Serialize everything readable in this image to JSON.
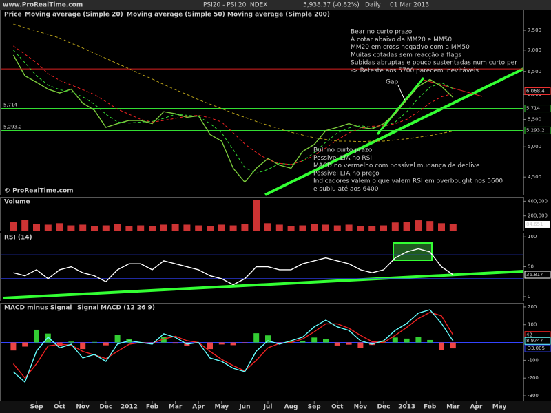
{
  "header": {
    "site": "www.ProRealTime.com",
    "title": "PSI20 - PSI 20 INDEX",
    "quote": "5,938.37 (-0.82%)",
    "period": "Daily",
    "date": "01 Mar 2013"
  },
  "chart_data": [
    {
      "type": "line",
      "log": true,
      "ylim": [
        4230,
        8060
      ],
      "yticks": [
        {
          "value": 7500,
          "label": "7,500"
        },
        {
          "value": 7000,
          "label": "7,000"
        },
        {
          "value": 6500,
          "label": "6,500"
        },
        {
          "value": 6000,
          "label": "6,000"
        },
        {
          "value": 5500,
          "label": "5,500"
        },
        {
          "value": 5000,
          "label": "5,000"
        },
        {
          "value": 4500,
          "label": "4,500"
        }
      ],
      "series": [
        {
          "name": "Price",
          "color": "#7ccd3c",
          "values": [
            6880,
            6400,
            6260,
            6110,
            6030,
            6110,
            5820,
            5680,
            5350,
            5420,
            5480,
            5480,
            5420,
            5650,
            5610,
            5540,
            5570,
            5220,
            5100,
            4640,
            4420,
            4640,
            4800,
            4690,
            4640,
            4920,
            5040,
            5290,
            5350,
            5420,
            5350,
            5320,
            5420,
            5610,
            5890,
            6170,
            6320,
            6170,
            5938,
            null,
            null,
            null,
            null
          ]
        },
        {
          "name": "Moving average (Simple 20)",
          "color": "#33dd33",
          "dashed": true,
          "values": [
            7000,
            6700,
            6400,
            6200,
            6100,
            6050,
            5950,
            5800,
            5600,
            5450,
            5430,
            5450,
            5460,
            5520,
            5600,
            5580,
            5560,
            5420,
            5250,
            4950,
            4650,
            4560,
            4620,
            4720,
            4700,
            4760,
            4900,
            5080,
            5250,
            5340,
            5380,
            5350,
            5360,
            5450,
            5650,
            5920,
            6150,
            6250,
            6120,
            null,
            null,
            null,
            null
          ]
        },
        {
          "name": "Moving average (Simple 50)",
          "color": "#ee2222",
          "dashed": true,
          "values": [
            7100,
            6900,
            6700,
            6450,
            6300,
            6200,
            6100,
            6000,
            5850,
            5700,
            5600,
            5500,
            5450,
            5480,
            5520,
            5560,
            5580,
            5530,
            5450,
            5250,
            5050,
            4900,
            4780,
            4720,
            4700,
            4760,
            4850,
            4980,
            5120,
            5250,
            5330,
            5370,
            5380,
            5420,
            5500,
            5650,
            5820,
            5950,
            6020,
            null,
            null,
            null,
            null
          ]
        },
        {
          "name": "Moving average (Simple 200)",
          "color": "#b8a018",
          "dashed": true,
          "values": [
            7660,
            7570,
            7480,
            7390,
            7300,
            7170,
            7050,
            6920,
            6800,
            6680,
            6560,
            6440,
            6330,
            6210,
            6100,
            6000,
            5890,
            5800,
            5710,
            5620,
            5540,
            5460,
            5390,
            5320,
            5260,
            5210,
            5160,
            5130,
            5100,
            5100,
            5090,
            5100,
            5100,
            5120,
            5140,
            5170,
            5200,
            5240,
            5280,
            null,
            null,
            null,
            null
          ]
        }
      ],
      "hlines": [
        {
          "value": 6557,
          "color": "#dd2222"
        },
        {
          "value": 5714,
          "color": "#33dd33",
          "label": "5,714"
        },
        {
          "value": 5293.2,
          "color": "#33dd33",
          "label": "5,293.2"
        }
      ],
      "markers": [
        {
          "value": 6068.4,
          "label": "6,068.4",
          "color": "#ff3333"
        }
      ],
      "annotations": [
        [
          "Bear no curto prazo",
          "A cotar abaixo da MM20 e MM50",
          "MM20 em cross negativo com a MM50",
          "Muitas cotadas sem reacção a flags",
          "Subidas abruptas e pouco sustentadas num curto per",
          "-> Reteste aos 5700 parecem inevitáveis"
        ],
        [
          "Bull no curto prazo",
          "Possivel LTA no RSI",
          "MACD no vermelho com possível mudança de declive",
          "Possivel LTA no preço",
          "Indicadores valem o que valem RSI em overbought nos 5600",
          "e subiu até aos 6400"
        ]
      ],
      "gap_label": "Gap",
      "watermark": "© ProRealTime.com"
    },
    {
      "type": "bar",
      "title": "Volume",
      "ylim": [
        0,
        450000
      ],
      "yticks": [
        {
          "value": 400000,
          "label": "400,000"
        },
        {
          "value": 200000,
          "label": "200,000"
        }
      ],
      "series": [
        {
          "name": "Volume",
          "color": "#cc3333",
          "values": [
            120000,
            150000,
            90000,
            80000,
            100000,
            70000,
            80000,
            60000,
            70000,
            90000,
            60000,
            70000,
            60000,
            80000,
            90000,
            80000,
            70000,
            60000,
            80000,
            70000,
            90000,
            420000,
            100000,
            80000,
            60000,
            70000,
            90000,
            80000,
            70000,
            80000,
            60000,
            60000,
            70000,
            110000,
            120000,
            140000,
            130000,
            100000,
            84651,
            null,
            null,
            null,
            null
          ],
          "value_labels": [
            null,
            null,
            null,
            null,
            null,
            null,
            null,
            null,
            null,
            null,
            null,
            null,
            null,
            null,
            null,
            null,
            null,
            null,
            null,
            null,
            null,
            null,
            null,
            null,
            null,
            null,
            null,
            null,
            null,
            null,
            null,
            null,
            null,
            null,
            null,
            null,
            null,
            null,
            "84,651",
            null,
            null,
            null,
            null
          ]
        }
      ]
    },
    {
      "type": "line",
      "title": "RSI (14)",
      "ylim": [
        -7,
        106
      ],
      "yticks": [
        100,
        50,
        0
      ],
      "series": [
        {
          "name": "RSI",
          "color": "#ffffff",
          "values": [
            40,
            35,
            45,
            30,
            45,
            50,
            40,
            35,
            25,
            45,
            55,
            55,
            45,
            60,
            55,
            50,
            45,
            35,
            30,
            20,
            30,
            50,
            50,
            45,
            45,
            55,
            60,
            65,
            60,
            55,
            45,
            40,
            45,
            65,
            75,
            80,
            75,
            50,
            36.817,
            null,
            null,
            null,
            null
          ]
        }
      ],
      "hlines": [
        {
          "value": 70,
          "color": "#3344ff"
        },
        {
          "value": 30,
          "color": "#3344ff"
        }
      ]
    },
    {
      "type": "line",
      "ylim": [
        -327,
        219
      ],
      "yticks": [
        200,
        100,
        -100,
        -200,
        -300
      ],
      "categories": [
        null,
        null,
        "Sep",
        null,
        "Oct",
        null,
        "Nov",
        null,
        "Dec",
        null,
        "2012",
        null,
        "Feb",
        null,
        "Mar",
        null,
        "Apr",
        null,
        "May",
        null,
        "Jun",
        null,
        "Jul",
        null,
        "Aug",
        null,
        "Sep",
        null,
        "Oct",
        null,
        "Nov",
        null,
        "Dec",
        null,
        "2013",
        null,
        "Feb",
        null,
        "Mar",
        null,
        "Apr",
        null,
        "May"
      ],
      "series": [
        {
          "name": "MACD minus Signal",
          "style": "histogram",
          "color": "#33cc33",
          "negative_color": "#ee4444",
          "values": [
            -45,
            -23,
            72,
            50,
            -20,
            5,
            -37,
            3,
            -16,
            41,
            20,
            0,
            -4,
            29,
            -6,
            -19,
            0,
            -37,
            -11,
            -15,
            -4,
            52,
            40,
            -4,
            10,
            10,
            28,
            21,
            -17,
            -12,
            -30,
            -14,
            10,
            28,
            22,
            30,
            14,
            -43,
            -33.005,
            null,
            null,
            null,
            null
          ]
        },
        {
          "name": "Signal",
          "color": "#ee2222",
          "values": [
            -120,
            -200,
            -120,
            -20,
            -10,
            -15,
            -50,
            -70,
            -90,
            -50,
            -10,
            0,
            -5,
            20,
            35,
            10,
            0,
            -50,
            -95,
            -130,
            -160,
            -100,
            -30,
            -5,
            0,
            20,
            60,
            105,
            105,
            80,
            40,
            5,
            0,
            40,
            85,
            135,
            170,
            150,
            42,
            null,
            null,
            null,
            null
          ]
        },
        {
          "name": "MACD (12 26 9)",
          "color": "#66ffff",
          "values": [
            -165,
            -223,
            -48,
            30,
            -30,
            -10,
            -87,
            -67,
            -106,
            -9,
            10,
            0,
            -9,
            49,
            29,
            -9,
            0,
            -87,
            -106,
            -145,
            -164,
            -48,
            10,
            -9,
            10,
            30,
            88,
            126,
            88,
            68,
            10,
            -9,
            10,
            68,
            107,
            165,
            184,
            107,
            8.9747,
            null,
            null,
            null,
            null
          ]
        }
      ],
      "hlines": [
        {
          "value": 0,
          "color": "#3344ff"
        }
      ]
    }
  ]
}
